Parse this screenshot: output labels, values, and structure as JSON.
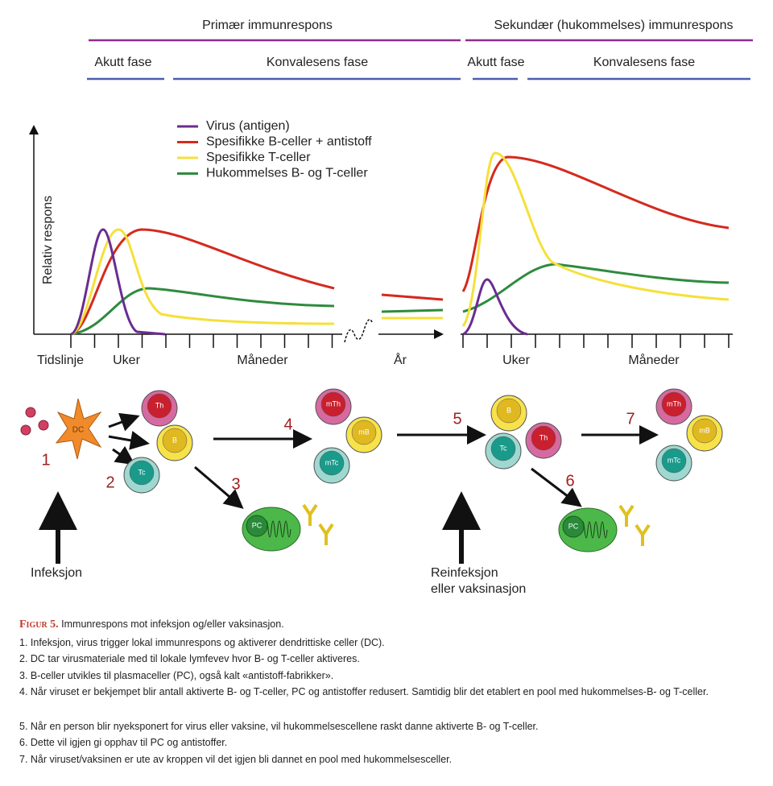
{
  "header": {
    "primary": "Primær immunrespons",
    "secondary": "Sekundær (hukommelses) immunrespons",
    "phases": [
      "Akutt fase",
      "Konvalesens fase",
      "Akutt fase",
      "Konvalesens fase"
    ]
  },
  "legend": [
    {
      "label": "Virus (antigen)",
      "color": "#6a2c91"
    },
    {
      "label": "Spesifikke B-celler + antistoff",
      "color": "#d42a1e"
    },
    {
      "label": "Spesifikke T-celler",
      "color": "#f5e03a"
    },
    {
      "label": "Hukommelses B- og T-celler",
      "color": "#2e8b3e"
    }
  ],
  "y_axis_label": "Relativ respons",
  "timeline": {
    "label": "Tidslinje",
    "segments": [
      "Uker",
      "Måneder",
      "År",
      "Uker",
      "Måneder"
    ]
  },
  "cells": [
    "DC",
    "Th",
    "B",
    "Tc",
    "PC",
    "mTh",
    "mB",
    "mTc",
    "B",
    "Tc",
    "Th",
    "PC",
    "mTh",
    "mB",
    "mTc"
  ],
  "steps": [
    "1",
    "2",
    "3",
    "4",
    "5",
    "6",
    "7"
  ],
  "infection": "Infeksjon",
  "reinfection": [
    "Reinfeksjon",
    "eller vaksinasjon"
  ],
  "caption": {
    "figure": "Figur 5.",
    "title": "Immunrespons mot infeksjon og/eller vaksinasjon.",
    "items": [
      "1. Infeksjon, virus trigger lokal immunrespons og aktiverer dendrittiske celler (DC).",
      "2. DC tar virusmateriale med til lokale lymfevev hvor B- og T-celler aktiveres.",
      "3. B-celler utvikles til plasmaceller (PC), også kalt «antistoff-fabrikker».",
      "4. Når viruset er bekjempet blir antall aktiverte B- og T-celler, PC og antistoffer redusert. Samtidig blir det etablert en pool med hukommelses-B- og T-celler.",
      "5. Når en person blir nyeksponert for virus eller vaksine, vil hukommelsescellene raskt danne aktiverte B- og T-celler.",
      "6. Dette vil igjen gi opphav til PC og antistoffer.",
      "7. Når viruset/vaksinen er ute av kroppen vil det igjen bli dannet en pool med hukommelsesceller."
    ]
  }
}
